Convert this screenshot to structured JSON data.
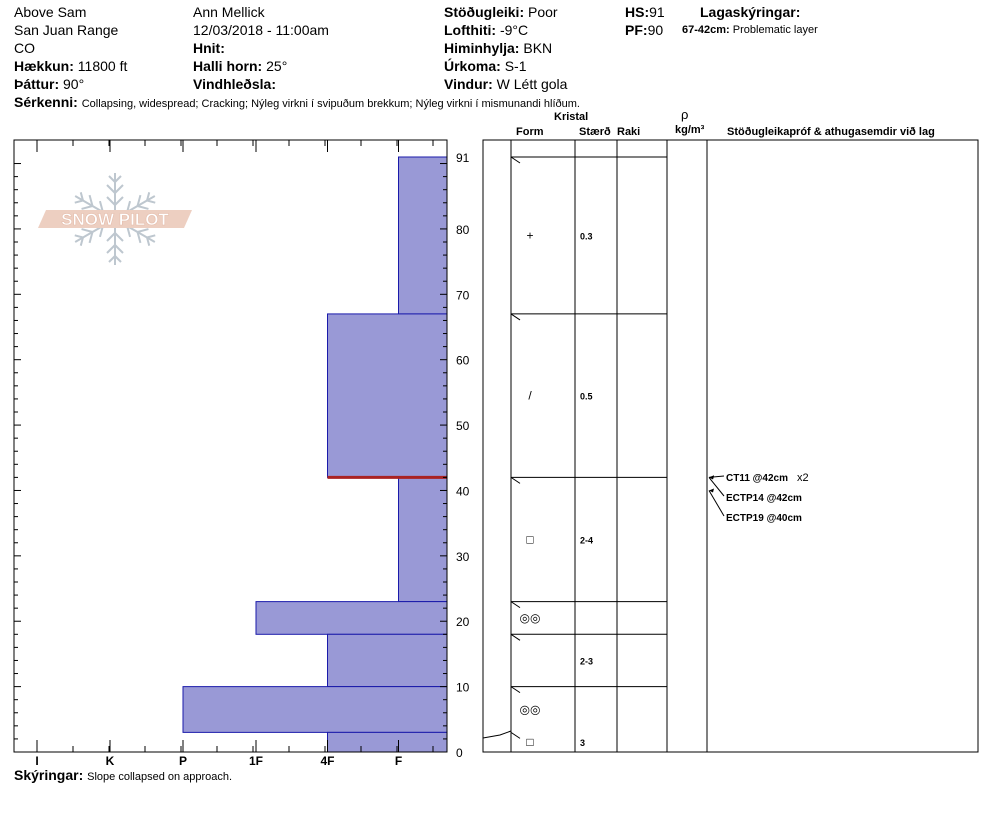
{
  "header": {
    "location": "Above Sam",
    "range": "San Juan Range",
    "state": "CO",
    "elevation_label": "Hækkun:",
    "elevation_value": "11800 ft",
    "aspect_label": "Þáttur:",
    "aspect_value": "90°",
    "observer": "Ann Mellick",
    "datetime": "12/03/2018 - 11:00am",
    "coords_label": "Hnit:",
    "slope_label": "Halli horn:",
    "slope_value": "25°",
    "wind_loading_label": "Vindhleðsla:",
    "stability_label": "Stöðugleiki:",
    "stability_value": "Poor",
    "air_temp_label": "Lofthiti:",
    "air_temp_value": "-9°C",
    "sky_label": "Himinhylja:",
    "sky_value": "BKN",
    "precip_label": "Úrkoma:",
    "precip_value": "S-1",
    "wind_label": "Vindur:",
    "wind_value": "W Létt gola",
    "hs_label": "HS:",
    "hs_value": "91",
    "pf_label": "PF:",
    "pf_value": "90",
    "layer_notes_label": "Lagaskýringar:",
    "layer_note_range": "67-42cm:",
    "layer_note_text": "Problematic layer",
    "features_label": "Sérkenni:",
    "features_value": "Collapsing, widespread;  Cracking;  Nýleg virkni í svipuðum brekkum;  Nýleg virkni í mismunandi hlíðum."
  },
  "table_headers": {
    "crystal": "Kristal",
    "form": "Form",
    "size": "Stærð",
    "moisture": "Raki",
    "rho": "ρ",
    "density_unit": "kg/m³",
    "tests": "Stöðugleikapróf & athugasemdir við lag"
  },
  "logo_text": "SNOW PILOT",
  "footer": {
    "comments_label": "Skýringar:",
    "comments_value": "Slope collapsed on approach."
  },
  "chart_data": {
    "type": "bar",
    "title": "",
    "xlabel": "",
    "ylabel": "",
    "x_categories": [
      "I",
      "K",
      "P",
      "1F",
      "4F",
      "F"
    ],
    "hardness_scale": {
      "F": 1,
      "4F": 2,
      "1F": 3,
      "P": 4,
      "K": 5,
      "I": 6
    },
    "ylim": [
      0,
      91
    ],
    "yticks": [
      0,
      10,
      20,
      30,
      40,
      50,
      60,
      70,
      80,
      91
    ],
    "bar_color": "#9999d6",
    "edge_color": "#1a1aaa",
    "problem_layer_color": "#aa2222",
    "layers": [
      {
        "top": 91,
        "bottom": 67,
        "hardness": "F",
        "form": "+",
        "size": "0.3"
      },
      {
        "top": 67,
        "bottom": 42,
        "hardness": "4F",
        "form": "/",
        "size": "0.5"
      },
      {
        "top": 42,
        "bottom": 23,
        "hardness": "F",
        "form": "□",
        "size": "2-4"
      },
      {
        "top": 23,
        "bottom": 18,
        "hardness": "1F",
        "form": "◎◎",
        "size": ""
      },
      {
        "top": 18,
        "bottom": 10,
        "hardness": "4F",
        "form": "",
        "size": "2-3"
      },
      {
        "top": 10,
        "bottom": 3,
        "hardness": "P",
        "form": "◎◎",
        "size": ""
      },
      {
        "top": 3,
        "bottom": 0,
        "hardness": "4F",
        "form": "□",
        "size": "3"
      }
    ],
    "problem_layer_depth": 42,
    "tests": [
      {
        "depth": 42,
        "label": "CT11 @42cm",
        "suffix": "x2"
      },
      {
        "depth": 42,
        "label": "ECTP14 @42cm",
        "suffix": ""
      },
      {
        "depth": 40,
        "label": "ECTP19 @40cm",
        "suffix": ""
      }
    ]
  }
}
